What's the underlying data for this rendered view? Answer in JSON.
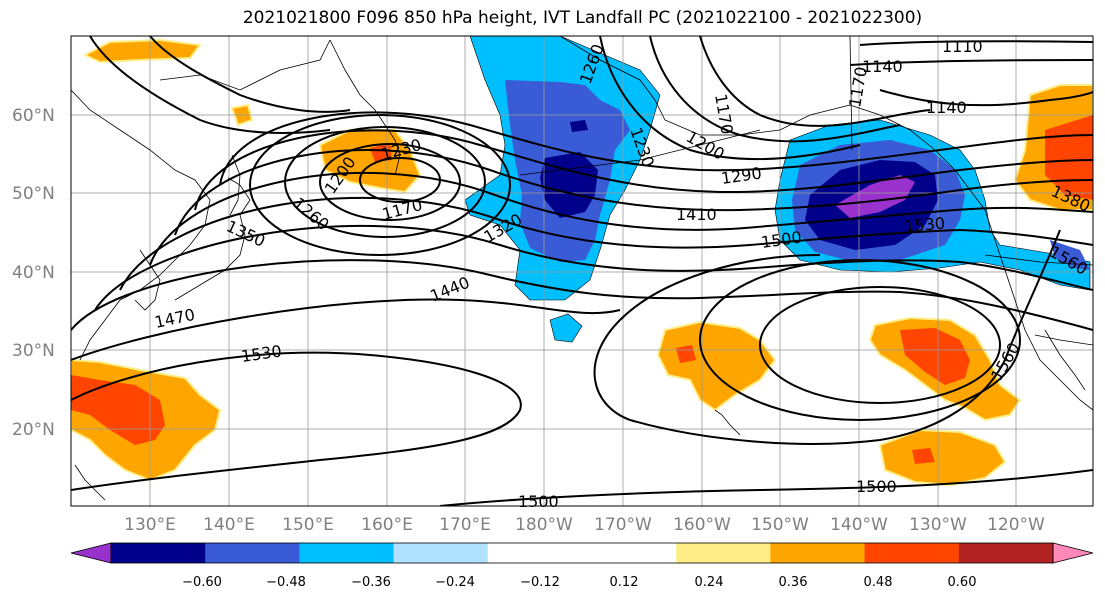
{
  "title": "2021021800 F096 850 hPa height, IVT Landfall PC (2021022100 - 2021022300)",
  "lat_ticks": [
    "60°N",
    "50°N",
    "40°N",
    "30°N",
    "20°N"
  ],
  "lon_ticks": [
    "130°E",
    "140°E",
    "150°E",
    "160°E",
    "170°E",
    "180°W",
    "170°W",
    "160°W",
    "150°W",
    "140°W",
    "130°W",
    "120°W"
  ],
  "colorbar": {
    "colors": [
      "#9932cc",
      "#00008b",
      "#3a5bd6",
      "#00bfff",
      "#b0e2ff",
      "#ffffff",
      "#ffffff",
      "#ffee88",
      "#ffa500",
      "#ff4500",
      "#b22222",
      "#ff88bb"
    ],
    "tick_labels": [
      "−0.60",
      "−0.48",
      "−0.36",
      "−0.24",
      "−0.12",
      "0.12",
      "0.24",
      "0.36",
      "0.48",
      "0.60"
    ]
  },
  "contour_labels": [
    "1110",
    "1140",
    "1140",
    "1170",
    "1200",
    "1170",
    "1230",
    "1260",
    "1350",
    "1260",
    "1170",
    "1200",
    "1230",
    "1290",
    "1320",
    "1410",
    "1440",
    "1470",
    "1500",
    "1530",
    "1530",
    "1560",
    "1560",
    "1380",
    "1500",
    "1500"
  ]
}
